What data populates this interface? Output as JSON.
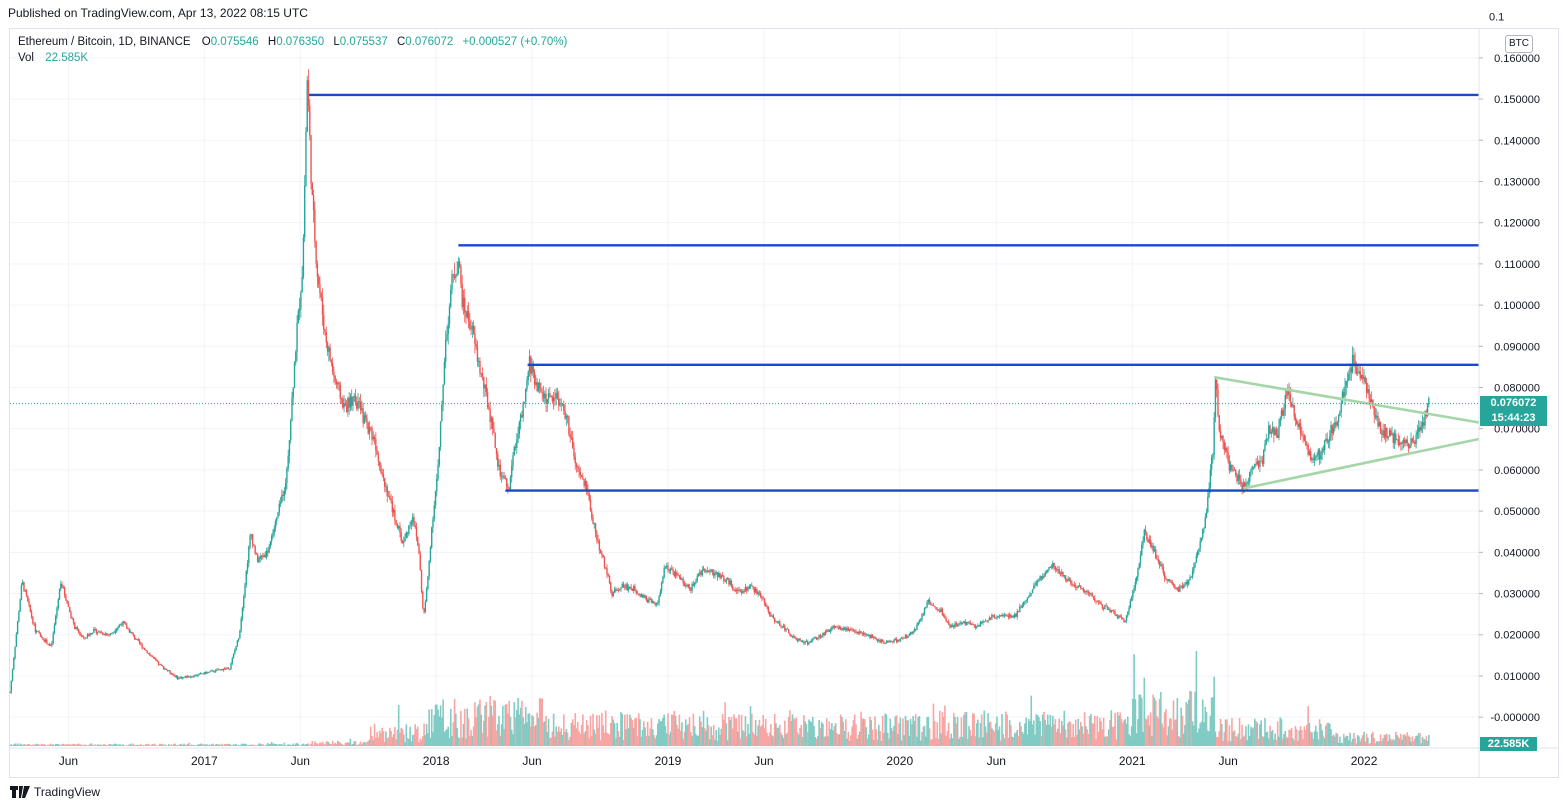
{
  "header": {
    "published": "Published on TradingView.com, Apr 13, 2022 08:15 UTC"
  },
  "legend": {
    "symbol": "Ethereum / Bitcoin, 1D, BINANCE",
    "o_key": "O",
    "o_val": "0.075546",
    "h_key": "H",
    "h_val": "0.076350",
    "l_key": "L",
    "l_val": "0.075537",
    "c_key": "C",
    "c_val": "0.076072",
    "change": "+0.000527 (+0.70%)",
    "vol_label": "Vol",
    "vol_val": "22.585K"
  },
  "currency_button": "BTC",
  "last_price": {
    "price": "0.076072",
    "countdown": "15:44:23"
  },
  "volume_last": "22.585K",
  "footer": {
    "brand": "TradingView"
  },
  "colors": {
    "up": "#26a69a",
    "down": "#ef5350",
    "level_line": "#1848cc",
    "triangle": "#a5d6a7",
    "grid": "#f0f3fa"
  },
  "chart_data": {
    "type": "candlestick",
    "symbol": "ETH/BTC",
    "timeframe": "1D",
    "ylim": [
      -0.007,
      0.167
    ],
    "y_ticks": [
      "0.160000",
      "0.150000",
      "0.140000",
      "0.130000",
      "0.120000",
      "0.110000",
      "0.100000",
      "0.090000",
      "0.080000",
      "0.070000",
      "0.060000",
      "0.050000",
      "0.040000",
      "0.030000",
      "0.020000",
      "0.010000",
      "-0.000000"
    ],
    "y_tick_values": [
      0.16,
      0.15,
      0.14,
      0.13,
      0.12,
      0.11,
      0.1,
      0.09,
      0.08,
      0.07,
      0.06,
      0.05,
      0.04,
      0.03,
      0.02,
      0.01,
      0.0
    ],
    "top_tick_partial": "0.1",
    "x_range": [
      "2016-03-01",
      "2022-07-01"
    ],
    "x_ticks": [
      {
        "label": "Jun",
        "date": "2016-06-01"
      },
      {
        "label": "2017",
        "date": "2017-01-01"
      },
      {
        "label": "Jun",
        "date": "2017-06-01"
      },
      {
        "label": "2018",
        "date": "2018-01-01"
      },
      {
        "label": "Jun",
        "date": "2018-06-01"
      },
      {
        "label": "2019",
        "date": "2019-01-01"
      },
      {
        "label": "Jun",
        "date": "2019-06-01"
      },
      {
        "label": "2020",
        "date": "2020-01-01"
      },
      {
        "label": "Jun",
        "date": "2020-06-01"
      },
      {
        "label": "2021",
        "date": "2021-01-01"
      },
      {
        "label": "Jun",
        "date": "2021-06-01"
      },
      {
        "label": "2022",
        "date": "2022-01-01"
      }
    ],
    "price_path": [
      [
        "2016-03-01",
        0.006
      ],
      [
        "2016-03-20",
        0.033
      ],
      [
        "2016-04-10",
        0.021
      ],
      [
        "2016-05-05",
        0.017
      ],
      [
        "2016-05-20",
        0.033
      ],
      [
        "2016-06-10",
        0.022
      ],
      [
        "2016-06-25",
        0.019
      ],
      [
        "2016-07-10",
        0.021
      ],
      [
        "2016-08-05",
        0.02
      ],
      [
        "2016-08-25",
        0.023
      ],
      [
        "2016-09-20",
        0.018
      ],
      [
        "2016-10-20",
        0.013
      ],
      [
        "2016-11-20",
        0.0095
      ],
      [
        "2016-12-15",
        0.01
      ],
      [
        "2017-01-10",
        0.011
      ],
      [
        "2017-02-10",
        0.012
      ],
      [
        "2017-02-25",
        0.02
      ],
      [
        "2017-03-15",
        0.045
      ],
      [
        "2017-03-25",
        0.038
      ],
      [
        "2017-04-10",
        0.04
      ],
      [
        "2017-04-25",
        0.048
      ],
      [
        "2017-05-10",
        0.058
      ],
      [
        "2017-05-25",
        0.09
      ],
      [
        "2017-06-05",
        0.11
      ],
      [
        "2017-06-12",
        0.155
      ],
      [
        "2017-06-20",
        0.125
      ],
      [
        "2017-06-28",
        0.108
      ],
      [
        "2017-07-10",
        0.093
      ],
      [
        "2017-07-25",
        0.082
      ],
      [
        "2017-08-10",
        0.075
      ],
      [
        "2017-08-25",
        0.078
      ],
      [
        "2017-09-10",
        0.072
      ],
      [
        "2017-09-25",
        0.068
      ],
      [
        "2017-10-10",
        0.058
      ],
      [
        "2017-10-25",
        0.05
      ],
      [
        "2017-11-10",
        0.042
      ],
      [
        "2017-11-25",
        0.049
      ],
      [
        "2017-12-05",
        0.04
      ],
      [
        "2017-12-12",
        0.024
      ],
      [
        "2017-12-18",
        0.032
      ],
      [
        "2017-12-25",
        0.046
      ],
      [
        "2018-01-05",
        0.062
      ],
      [
        "2018-01-15",
        0.09
      ],
      [
        "2018-01-25",
        0.105
      ],
      [
        "2018-02-05",
        0.111
      ],
      [
        "2018-02-12",
        0.1
      ],
      [
        "2018-02-25",
        0.095
      ],
      [
        "2018-03-10",
        0.085
      ],
      [
        "2018-03-25",
        0.075
      ],
      [
        "2018-04-10",
        0.06
      ],
      [
        "2018-04-25",
        0.055
      ],
      [
        "2018-05-05",
        0.066
      ],
      [
        "2018-05-20",
        0.076
      ],
      [
        "2018-05-28",
        0.086
      ],
      [
        "2018-06-10",
        0.08
      ],
      [
        "2018-06-25",
        0.077
      ],
      [
        "2018-07-10",
        0.078
      ],
      [
        "2018-07-25",
        0.073
      ],
      [
        "2018-08-10",
        0.06
      ],
      [
        "2018-08-25",
        0.056
      ],
      [
        "2018-09-10",
        0.044
      ],
      [
        "2018-09-25",
        0.036
      ],
      [
        "2018-10-05",
        0.03
      ],
      [
        "2018-10-20",
        0.032
      ],
      [
        "2018-11-10",
        0.031
      ],
      [
        "2018-11-25",
        0.029
      ],
      [
        "2018-12-15",
        0.027
      ],
      [
        "2018-12-28",
        0.037
      ],
      [
        "2019-01-10",
        0.035
      ],
      [
        "2019-02-05",
        0.031
      ],
      [
        "2019-02-25",
        0.036
      ],
      [
        "2019-03-15",
        0.035
      ],
      [
        "2019-04-05",
        0.033
      ],
      [
        "2019-04-25",
        0.03
      ],
      [
        "2019-05-10",
        0.032
      ],
      [
        "2019-05-28",
        0.029
      ],
      [
        "2019-06-15",
        0.024
      ],
      [
        "2019-07-01",
        0.022
      ],
      [
        "2019-07-20",
        0.019
      ],
      [
        "2019-08-10",
        0.018
      ],
      [
        "2019-09-01",
        0.02
      ],
      [
        "2019-09-20",
        0.022
      ],
      [
        "2019-10-15",
        0.021
      ],
      [
        "2019-11-10",
        0.02
      ],
      [
        "2019-12-10",
        0.018
      ],
      [
        "2020-01-05",
        0.019
      ],
      [
        "2020-01-25",
        0.021
      ],
      [
        "2020-02-15",
        0.028
      ],
      [
        "2020-03-05",
        0.026
      ],
      [
        "2020-03-20",
        0.022
      ],
      [
        "2020-04-10",
        0.023
      ],
      [
        "2020-05-01",
        0.022
      ],
      [
        "2020-05-20",
        0.024
      ],
      [
        "2020-06-10",
        0.025
      ],
      [
        "2020-06-28",
        0.024
      ],
      [
        "2020-07-20",
        0.029
      ],
      [
        "2020-08-10",
        0.034
      ],
      [
        "2020-08-28",
        0.037
      ],
      [
        "2020-09-15",
        0.034
      ],
      [
        "2020-10-05",
        0.032
      ],
      [
        "2020-10-25",
        0.03
      ],
      [
        "2020-11-15",
        0.027
      ],
      [
        "2020-12-05",
        0.025
      ],
      [
        "2020-12-20",
        0.023
      ],
      [
        "2021-01-05",
        0.032
      ],
      [
        "2021-01-20",
        0.045
      ],
      [
        "2021-02-05",
        0.04
      ],
      [
        "2021-02-25",
        0.033
      ],
      [
        "2021-03-15",
        0.031
      ],
      [
        "2021-04-01",
        0.033
      ],
      [
        "2021-04-15",
        0.04
      ],
      [
        "2021-04-28",
        0.05
      ],
      [
        "2021-05-08",
        0.065
      ],
      [
        "2021-05-12",
        0.082
      ],
      [
        "2021-05-18",
        0.07
      ],
      [
        "2021-05-25",
        0.066
      ],
      [
        "2021-06-05",
        0.06
      ],
      [
        "2021-06-25",
        0.056
      ],
      [
        "2021-07-10",
        0.06
      ],
      [
        "2021-07-25",
        0.062
      ],
      [
        "2021-08-05",
        0.07
      ],
      [
        "2021-08-18",
        0.069
      ],
      [
        "2021-09-02",
        0.079
      ],
      [
        "2021-09-15",
        0.072
      ],
      [
        "2021-09-25",
        0.069
      ],
      [
        "2021-10-10",
        0.062
      ],
      [
        "2021-10-25",
        0.064
      ],
      [
        "2021-11-05",
        0.068
      ],
      [
        "2021-11-18",
        0.072
      ],
      [
        "2021-12-01",
        0.079
      ],
      [
        "2021-12-10",
        0.083
      ],
      [
        "2021-12-15",
        0.087
      ],
      [
        "2021-12-25",
        0.083
      ],
      [
        "2022-01-05",
        0.08
      ],
      [
        "2022-01-20",
        0.072
      ],
      [
        "2022-02-01",
        0.069
      ],
      [
        "2022-02-15",
        0.068
      ],
      [
        "2022-03-01",
        0.067
      ],
      [
        "2022-03-15",
        0.066
      ],
      [
        "2022-03-28",
        0.069
      ],
      [
        "2022-04-05",
        0.072
      ],
      [
        "2022-04-13",
        0.0761
      ]
    ],
    "horizontal_levels": [
      0.151,
      0.1145,
      0.0855,
      0.055
    ],
    "level_starts": [
      "2017-06-15",
      "2018-02-05",
      "2018-05-25",
      "2018-04-20"
    ],
    "triangle_upper": [
      [
        "2021-05-10",
        0.0825
      ],
      [
        "2022-07-01",
        0.0715
      ]
    ],
    "triangle_lower": [
      [
        "2021-06-25",
        0.0555
      ],
      [
        "2022-07-01",
        0.0675
      ]
    ],
    "last_price": 0.076072,
    "volume": {
      "last": 22.585,
      "unit": "K"
    }
  }
}
